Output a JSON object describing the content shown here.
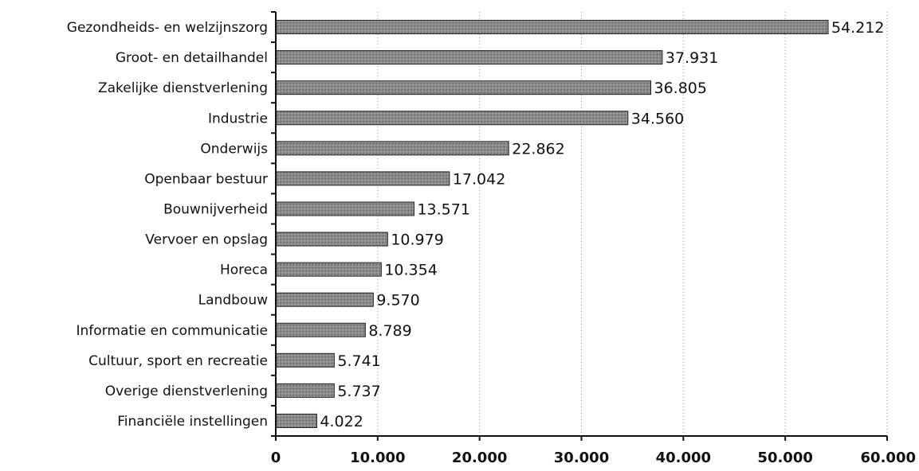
{
  "chart_data": {
    "type": "bar",
    "orientation": "horizontal",
    "title": "",
    "xlabel": "",
    "ylabel": "",
    "categories": [
      "Gezondheids- en welzijnszorg",
      "Groot- en detailhandel",
      "Zakelijke dienstverlening",
      "Industrie",
      "Onderwijs",
      "Openbaar bestuur",
      "Bouwnijverheid",
      "Vervoer en opslag",
      "Horeca",
      "Landbouw",
      "Informatie en communicatie",
      "Cultuur, sport en recreatie",
      "Overige dienstverlening",
      "Financiële instellingen"
    ],
    "values": [
      54212,
      37931,
      36805,
      34560,
      22862,
      17042,
      13571,
      10979,
      10354,
      9570,
      8789,
      5741,
      5737,
      4022
    ],
    "value_labels": [
      "54.212",
      "37.931",
      "36.805",
      "34.560",
      "22.862",
      "17.042",
      "13.571",
      "10.979",
      "10.354",
      "9.570",
      "8.789",
      "5.741",
      "5.737",
      "4.022"
    ],
    "xlim": [
      0,
      60000
    ],
    "xticks": [
      0,
      10000,
      20000,
      30000,
      40000,
      50000,
      60000
    ],
    "xtick_labels": [
      "0",
      "10.000",
      "20.000",
      "30.000",
      "40.000",
      "50.000",
      "60.000"
    ],
    "grid": "vertical dotted",
    "legend": "none",
    "bar_color": "#8a8a8a"
  }
}
